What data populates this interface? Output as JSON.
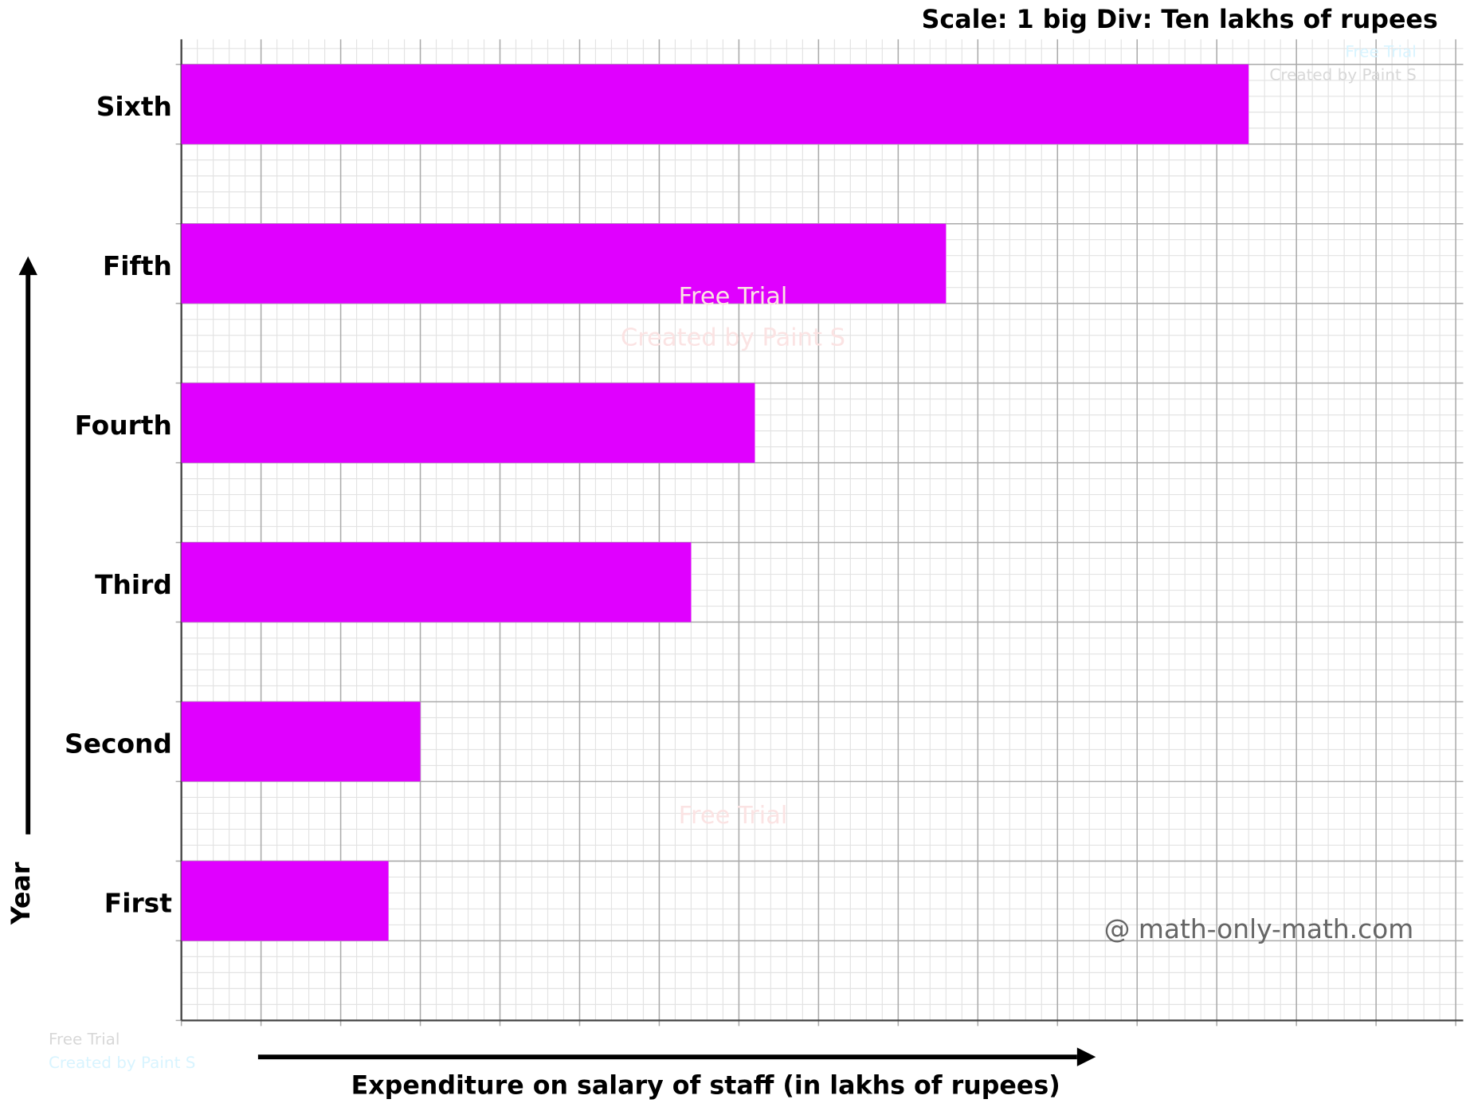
{
  "chart_data": {
    "type": "barh",
    "title": "Scale: 1 big Div: Ten lakhs of rupees",
    "xlabel": "Expenditure on salary of staff (in lakhs of rupees)",
    "ylabel": "Year",
    "categories": [
      "First",
      "Second",
      "Third",
      "Fourth",
      "Fifth",
      "Sixth"
    ],
    "values": [
      26,
      30,
      64,
      72,
      96,
      134
    ],
    "color": "#e000ff",
    "xlim": [
      0,
      160
    ],
    "xticks": [
      0,
      10,
      20,
      30,
      40,
      50,
      60,
      70,
      80,
      90,
      100,
      110,
      120,
      130,
      140,
      150,
      160
    ],
    "grid": true,
    "credit": "@ math-only-math.com",
    "watermarks": [
      "Free Trial",
      "Created by Paint S"
    ]
  }
}
